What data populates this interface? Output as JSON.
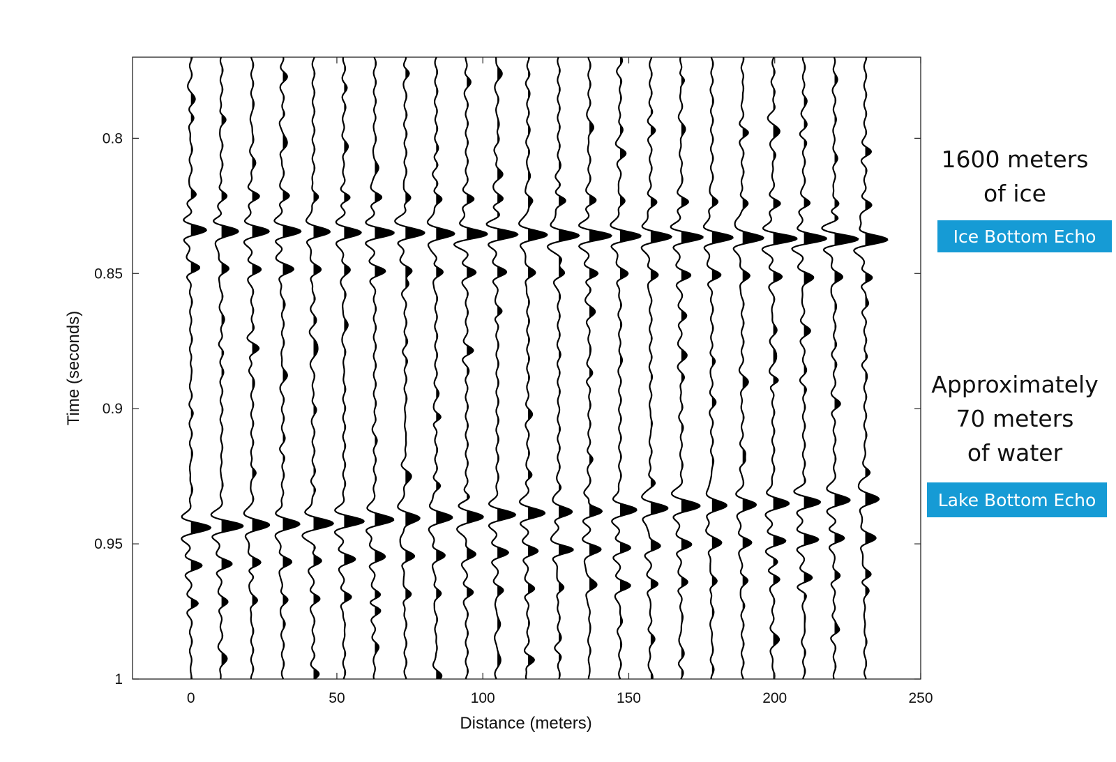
{
  "chart_data": {
    "type": "line",
    "title": "",
    "xlabel": "Distance (meters)",
    "ylabel": "Time (seconds)",
    "xlim": [
      -20,
      250
    ],
    "ylim": [
      0.77,
      1.0
    ],
    "y_reversed": true,
    "xticks": [
      0,
      50,
      100,
      150,
      200,
      250
    ],
    "yticks": [
      0.8,
      0.85,
      0.9,
      0.95,
      1
    ],
    "ytick_labels": [
      "0.8",
      "0.85",
      "0.9",
      "0.95",
      "1"
    ],
    "grid": false,
    "trace_offsets_m": [
      0,
      10.5,
      21,
      31.5,
      42,
      52.5,
      63,
      73.5,
      84,
      94.5,
      105,
      115.5,
      126,
      136.5,
      147,
      157.5,
      168,
      178.5,
      189,
      199.5,
      210,
      220.5,
      231
    ],
    "wiggle_fill": "positive lobes filled black",
    "events": [
      {
        "name": "Ice Bottom Echo",
        "time_at_0m": 0.834,
        "time_at_231m": 0.8375
      },
      {
        "name": "Lake Bottom Echo",
        "time_at_0m": 0.944,
        "time_at_231m": 0.9335
      }
    ]
  },
  "annotations": {
    "ice_text": "1600 meters\nof ice",
    "ice_badge": "Ice Bottom Echo",
    "water_text": "Approximately\n70 meters\nof water",
    "water_badge": "Lake Bottom Echo"
  },
  "colors": {
    "badge": "#169bd5",
    "badge_text": "#ffffff",
    "trace": "#000000"
  }
}
